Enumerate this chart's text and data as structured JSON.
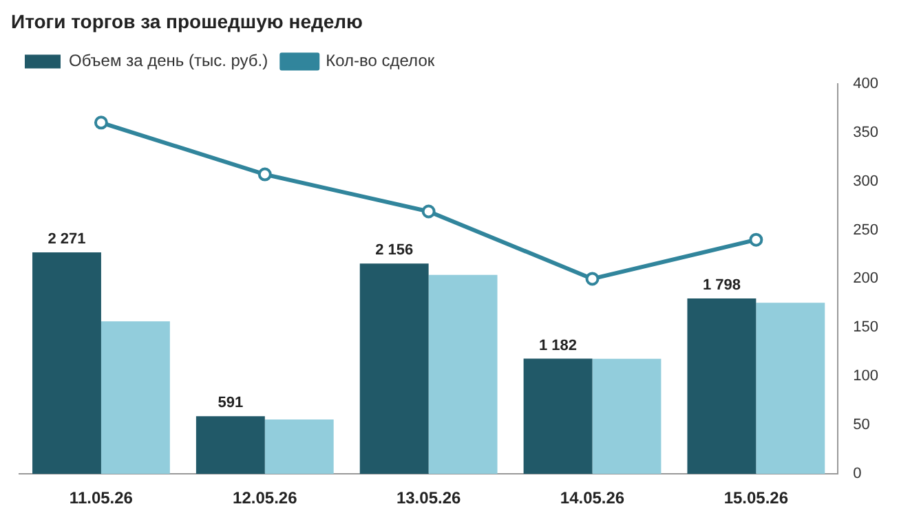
{
  "chart_data": {
    "type": "bar",
    "title": "Итоги торгов за прошедшую неделю",
    "categories": [
      "11.05.26",
      "12.05.26",
      "13.05.26",
      "14.05.26",
      "15.05.26"
    ],
    "series": [
      {
        "name": "Объем за день (тыс. руб.)",
        "color": "#215968",
        "values": [
          2271,
          591,
          2156,
          1182,
          1798
        ],
        "value_labels": [
          "2 271",
          "591",
          "2 156",
          "1 182",
          "1 798"
        ]
      },
      {
        "color": "#92cddc",
        "values": [
          1565,
          558,
          2040,
          1180,
          1755
        ]
      },
      {
        "name": "Кол-во сделок",
        "type": "line",
        "axis": "y2",
        "color": "#31859c",
        "values": [
          360,
          307,
          269,
          200,
          240
        ],
        "marker": "circle"
      }
    ],
    "ylim": [
      0,
      4000
    ],
    "y2lim": [
      0,
      400
    ],
    "y2ticks": [
      0,
      50,
      100,
      150,
      200,
      250,
      300,
      350,
      400
    ],
    "tick_labels": "xy2",
    "grid": false,
    "legend": "top left"
  }
}
